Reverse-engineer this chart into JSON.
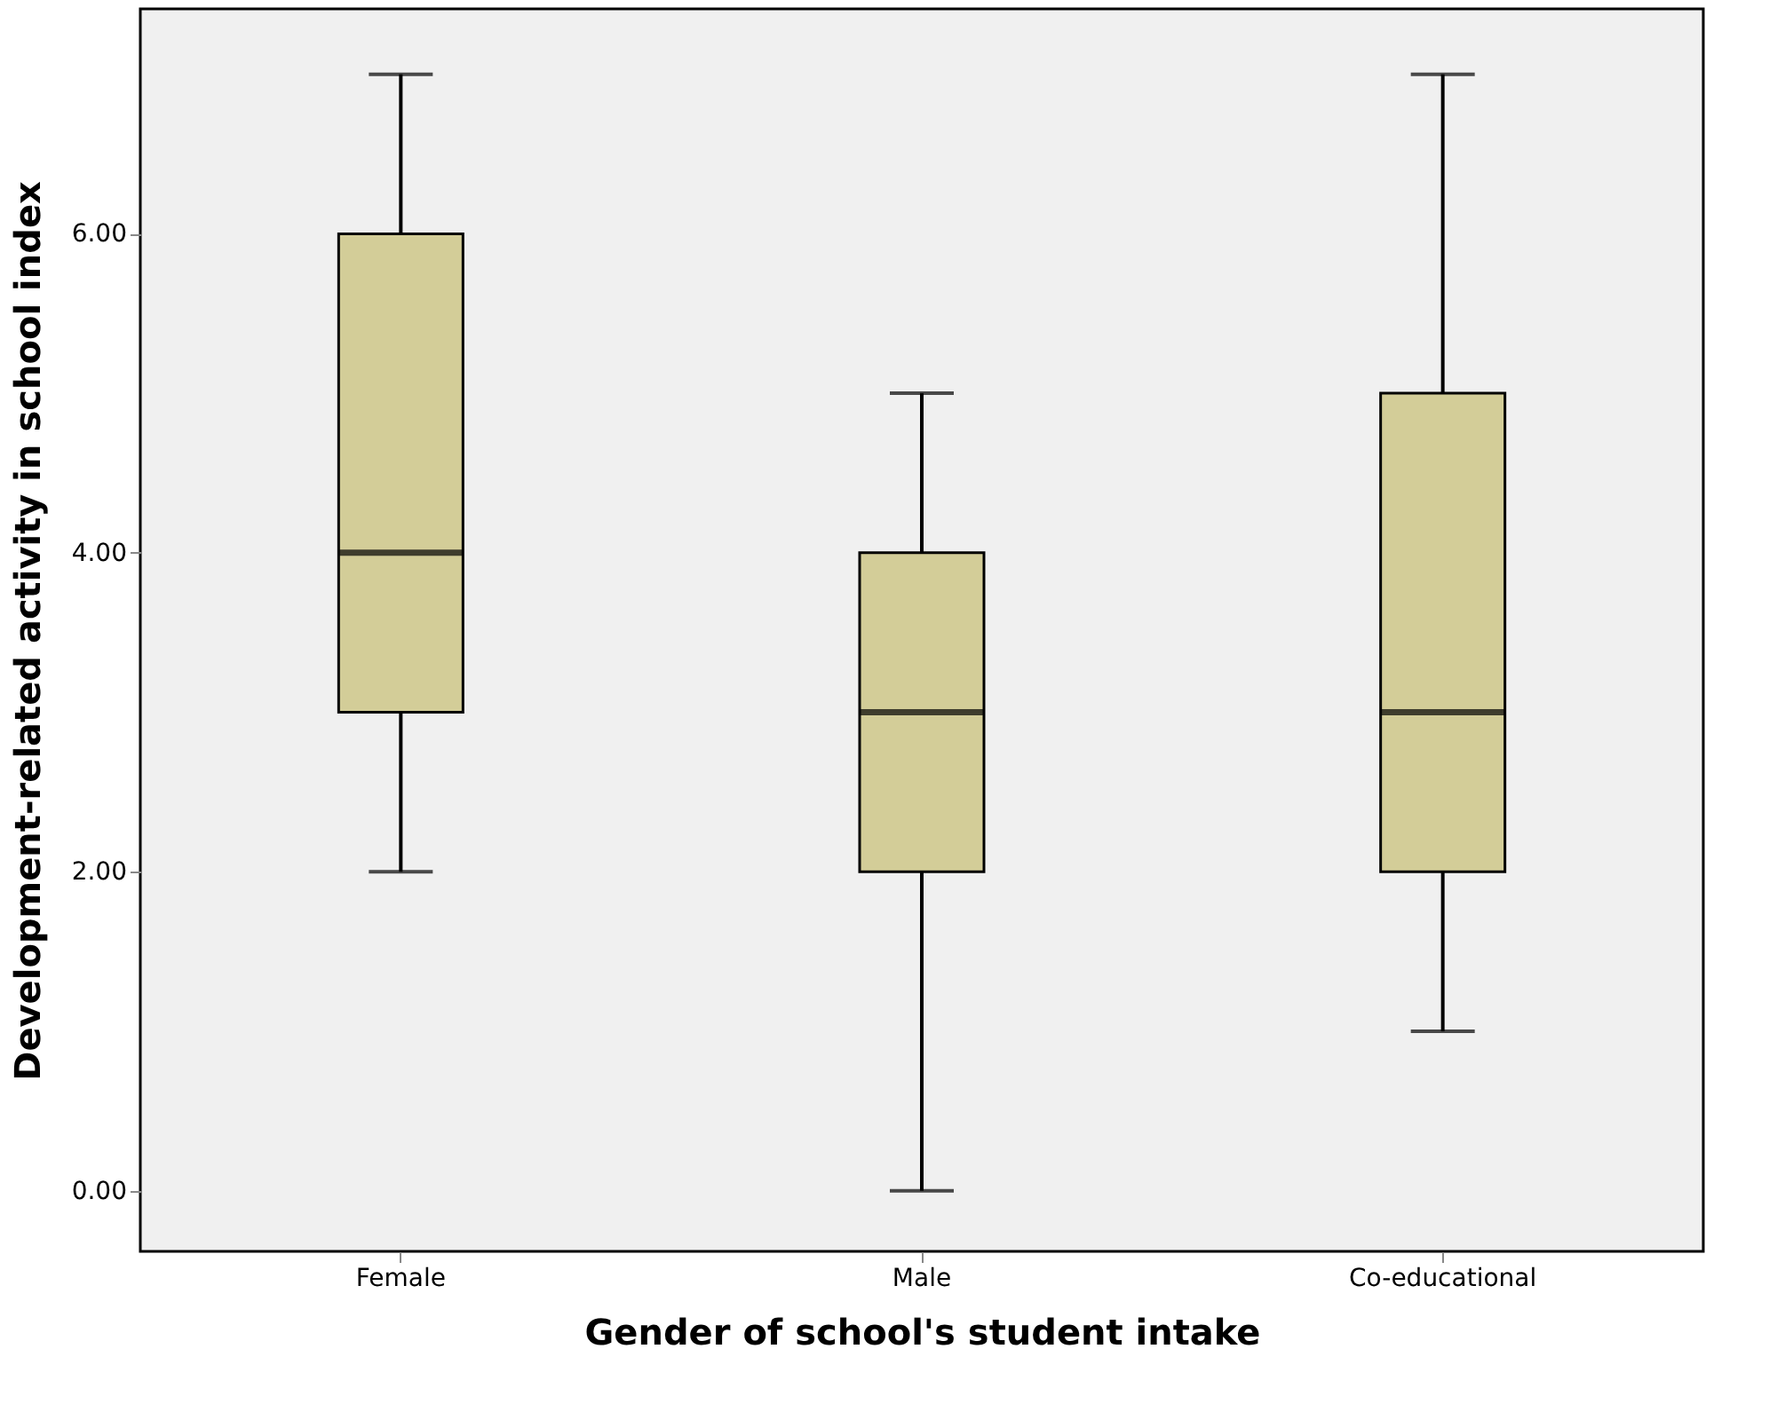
{
  "chart_data": {
    "type": "box",
    "xlabel": "Gender of school's student intake",
    "ylabel": "Development-related activity in school index",
    "categories": [
      "Female",
      "Male",
      "Co-educational"
    ],
    "boxes": [
      {
        "low": 2,
        "q1": 3,
        "median": 4,
        "q3": 6,
        "high": 7
      },
      {
        "low": 0,
        "q1": 2,
        "median": 3,
        "q3": 4,
        "high": 5
      },
      {
        "low": 1,
        "q1": 2,
        "median": 3,
        "q3": 5,
        "high": 7
      }
    ],
    "color": "#d3cd98",
    "ylim": [
      -0.38,
      7.41
    ],
    "grid": false,
    "yticks": [
      {
        "value": 0,
        "label": "0.00"
      },
      {
        "value": 2,
        "label": "2.00"
      },
      {
        "value": 4,
        "label": "4.00"
      },
      {
        "value": 6,
        "label": "6.00"
      }
    ]
  }
}
